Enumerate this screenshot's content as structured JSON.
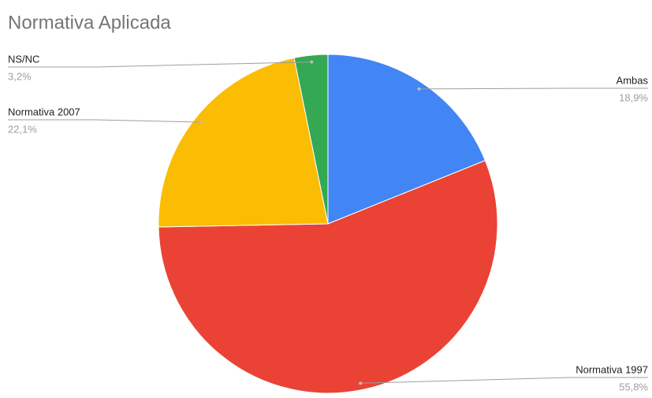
{
  "chart_data": {
    "type": "pie",
    "title": "Normativa Aplicada",
    "categories": [
      "Ambas",
      "Normativa 1997",
      "Normativa 2007",
      "NS/NC"
    ],
    "values": [
      18.9,
      55.8,
      22.1,
      3.2
    ],
    "value_labels": [
      "18,9%",
      "55,8%",
      "22,1%",
      "3,2%"
    ],
    "colors": [
      "#4285f4",
      "#ea4335",
      "#fbbc04",
      "#34a853"
    ]
  }
}
